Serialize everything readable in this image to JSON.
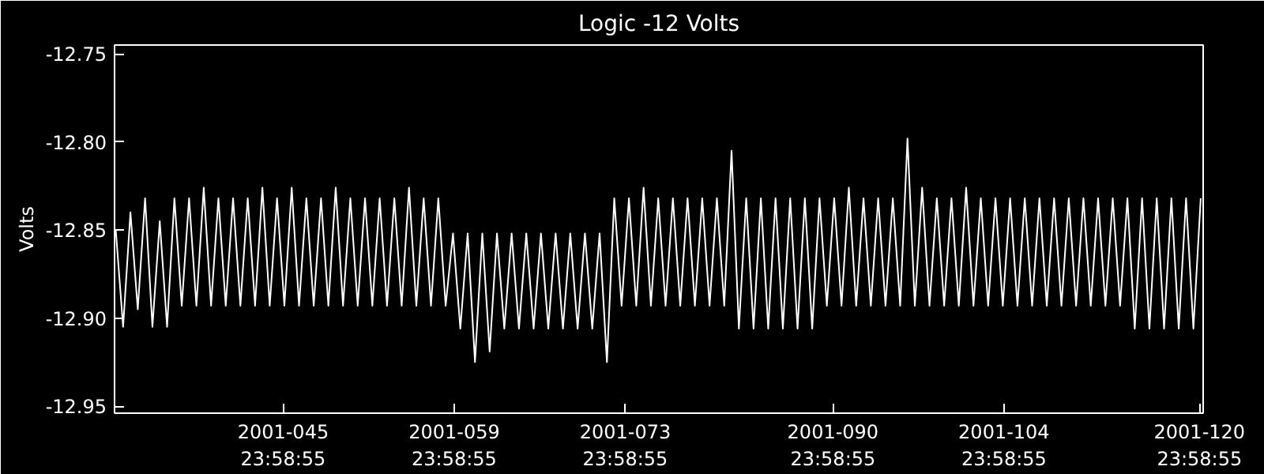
{
  "chart_data": {
    "type": "line",
    "title": "Logic -12 Volts",
    "ylabel": "Volts",
    "x": [
      "2001-02-01T07:12",
      "2001-02-01T21:36",
      "2001-02-02T12:00",
      "2001-02-03T02:24",
      "2001-02-03T16:48",
      "2001-02-04T07:12",
      "2001-02-04T21:36",
      "2001-02-05T12:00",
      "2001-02-06T02:24",
      "2001-02-06T16:48",
      "2001-02-07T07:12",
      "2001-02-07T21:36",
      "2001-02-08T12:00",
      "2001-02-09T02:24",
      "2001-02-09T16:48",
      "2001-02-10T07:12",
      "2001-02-10T21:36",
      "2001-02-11T12:00",
      "2001-02-12T02:24",
      "2001-02-12T16:48",
      "2001-02-13T07:12",
      "2001-02-13T21:36",
      "2001-02-14T12:00",
      "2001-02-15T02:24",
      "2001-02-15T16:48",
      "2001-02-16T07:12",
      "2001-02-16T21:36",
      "2001-02-17T12:00",
      "2001-02-18T02:24",
      "2001-02-18T16:48",
      "2001-02-19T07:12",
      "2001-02-19T21:36",
      "2001-02-20T12:00",
      "2001-02-21T02:24",
      "2001-02-21T16:48",
      "2001-02-22T07:12",
      "2001-02-22T21:36",
      "2001-02-23T12:00",
      "2001-02-24T02:24",
      "2001-02-24T16:48",
      "2001-02-25T07:12",
      "2001-02-25T21:36",
      "2001-02-26T12:00",
      "2001-02-27T02:24",
      "2001-02-27T16:48",
      "2001-02-28T07:12",
      "2001-02-28T21:36",
      "2001-03-01T12:00",
      "2001-03-02T02:24",
      "2001-03-02T16:48",
      "2001-03-03T07:12",
      "2001-03-03T21:36",
      "2001-03-04T12:00",
      "2001-03-05T02:24",
      "2001-03-05T16:48",
      "2001-03-06T07:12",
      "2001-03-06T21:36",
      "2001-03-07T12:00",
      "2001-03-08T02:24",
      "2001-03-08T16:48",
      "2001-03-09T07:12",
      "2001-03-09T21:36",
      "2001-03-10T12:00",
      "2001-03-11T02:24",
      "2001-03-11T16:48",
      "2001-03-12T07:12",
      "2001-03-12T21:36",
      "2001-03-13T12:00",
      "2001-03-14T02:24",
      "2001-03-14T16:48",
      "2001-03-15T07:12",
      "2001-03-15T21:36",
      "2001-03-16T12:00",
      "2001-03-17T02:24",
      "2001-03-17T16:48",
      "2001-03-18T07:12",
      "2001-03-18T21:36",
      "2001-03-19T12:00",
      "2001-03-20T02:24",
      "2001-03-20T16:48",
      "2001-03-21T07:12",
      "2001-03-21T21:36",
      "2001-03-22T12:00",
      "2001-03-23T02:24",
      "2001-03-23T16:48",
      "2001-03-24T07:12",
      "2001-03-24T21:36",
      "2001-03-25T12:00",
      "2001-03-26T02:24",
      "2001-03-26T16:48",
      "2001-03-27T07:12",
      "2001-03-27T21:36",
      "2001-03-28T12:00",
      "2001-03-29T02:24",
      "2001-03-29T16:48",
      "2001-03-30T07:12",
      "2001-03-30T21:36",
      "2001-03-31T12:00",
      "2001-04-01T02:24",
      "2001-04-01T16:48",
      "2001-04-02T07:12",
      "2001-04-02T21:36",
      "2001-04-03T12:00",
      "2001-04-04T02:24",
      "2001-04-04T16:48",
      "2001-04-05T07:12",
      "2001-04-05T21:36",
      "2001-04-06T12:00",
      "2001-04-07T02:24",
      "2001-04-07T16:48",
      "2001-04-08T07:12",
      "2001-04-08T21:36",
      "2001-04-09T12:00",
      "2001-04-10T02:24",
      "2001-04-10T16:48",
      "2001-04-11T07:12",
      "2001-04-11T21:36",
      "2001-04-12T12:00",
      "2001-04-13T02:24",
      "2001-04-13T16:48",
      "2001-04-14T07:12",
      "2001-04-14T21:36",
      "2001-04-15T12:00",
      "2001-04-16T02:24",
      "2001-04-16T16:48",
      "2001-04-17T07:12",
      "2001-04-17T21:36",
      "2001-04-18T12:00",
      "2001-04-19T02:24",
      "2001-04-19T16:48",
      "2001-04-20T07:12",
      "2001-04-20T21:36",
      "2001-04-21T12:00",
      "2001-04-22T02:24",
      "2001-04-22T16:48",
      "2001-04-23T07:12",
      "2001-04-23T21:36",
      "2001-04-24T12:00",
      "2001-04-25T02:24",
      "2001-04-25T16:48",
      "2001-04-26T07:12",
      "2001-04-26T21:36",
      "2001-04-27T12:00",
      "2001-04-28T02:24",
      "2001-04-28T16:48",
      "2001-04-29T07:12",
      "2001-04-29T21:36",
      "2001-04-30T12:00",
      "2001-05-01T02:24"
    ],
    "values": [
      -12.85,
      -12.905,
      -12.84,
      -12.895,
      -12.832,
      -12.905,
      -12.845,
      -12.905,
      -12.832,
      -12.893,
      -12.832,
      -12.893,
      -12.826,
      -12.893,
      -12.832,
      -12.893,
      -12.832,
      -12.893,
      -12.832,
      -12.893,
      -12.826,
      -12.893,
      -12.832,
      -12.893,
      -12.826,
      -12.893,
      -12.832,
      -12.893,
      -12.832,
      -12.893,
      -12.826,
      -12.893,
      -12.832,
      -12.893,
      -12.832,
      -12.893,
      -12.832,
      -12.893,
      -12.832,
      -12.893,
      -12.826,
      -12.893,
      -12.832,
      -12.893,
      -12.832,
      -12.893,
      -12.852,
      -12.906,
      -12.852,
      -12.925,
      -12.852,
      -12.919,
      -12.852,
      -12.906,
      -12.852,
      -12.906,
      -12.852,
      -12.906,
      -12.852,
      -12.906,
      -12.852,
      -12.906,
      -12.852,
      -12.906,
      -12.852,
      -12.906,
      -12.852,
      -12.925,
      -12.832,
      -12.893,
      -12.832,
      -12.893,
      -12.826,
      -12.893,
      -12.832,
      -12.893,
      -12.832,
      -12.893,
      -12.832,
      -12.893,
      -12.832,
      -12.893,
      -12.832,
      -12.893,
      -12.805,
      -12.906,
      -12.832,
      -12.906,
      -12.832,
      -12.906,
      -12.832,
      -12.906,
      -12.832,
      -12.906,
      -12.832,
      -12.906,
      -12.832,
      -12.893,
      -12.832,
      -12.893,
      -12.826,
      -12.893,
      -12.832,
      -12.893,
      -12.832,
      -12.893,
      -12.832,
      -12.893,
      -12.798,
      -12.893,
      -12.826,
      -12.893,
      -12.832,
      -12.893,
      -12.832,
      -12.893,
      -12.826,
      -12.893,
      -12.832,
      -12.893,
      -12.832,
      -12.893,
      -12.832,
      -12.893,
      -12.832,
      -12.893,
      -12.832,
      -12.893,
      -12.832,
      -12.893,
      -12.832,
      -12.893,
      -12.832,
      -12.893,
      -12.832,
      -12.893,
      -12.832,
      -12.893,
      -12.832,
      -12.906,
      -12.832,
      -12.906,
      -12.832,
      -12.906,
      -12.832,
      -12.906,
      -12.832,
      -12.906,
      -12.832
    ],
    "color": "#ffffff",
    "xlim": [
      "2001-02-01T04:48",
      "2001-05-01T07:12"
    ],
    "xticks": [
      {
        "value": "2001-02-14T23:58:55",
        "label": "2001-045\n23:58:55"
      },
      {
        "value": "2001-02-28T23:58:55",
        "label": "2001-059\n23:58:55"
      },
      {
        "value": "2001-03-14T23:58:55",
        "label": "2001-073\n23:58:55"
      },
      {
        "value": "2001-03-31T23:58:55",
        "label": "2001-090\n23:58:55"
      },
      {
        "value": "2001-04-14T23:58:55",
        "label": "2001-104\n23:58:55"
      },
      {
        "value": "2001-04-30T23:58:55",
        "label": "2001-120\n23:58:55"
      }
    ],
    "ylim": [
      -12.954,
      -12.745
    ],
    "yticks": [
      {
        "value": -12.75,
        "label": "-12.75"
      },
      {
        "value": -12.8,
        "label": "-12.80"
      },
      {
        "value": -12.85,
        "label": "-12.85"
      },
      {
        "value": -12.9,
        "label": "-12.90"
      },
      {
        "value": -12.95,
        "label": "-12.95"
      }
    ],
    "grid": false,
    "marker": "none",
    "line_style": "solid"
  }
}
